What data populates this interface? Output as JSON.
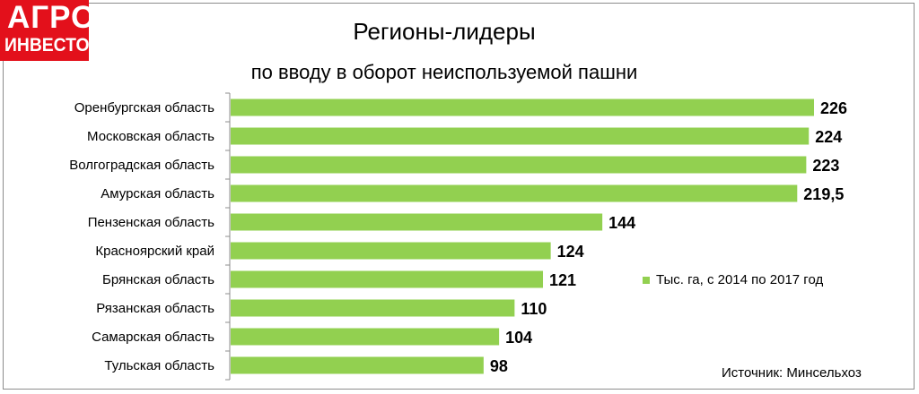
{
  "logo": {
    "line1": "АГРО",
    "line2": "ИНВЕСТОР"
  },
  "chart_data": {
    "type": "bar",
    "orientation": "horizontal",
    "title": "Регионы-лидеры",
    "subtitle": "по вводу в оборот неиспользуемой пашни",
    "categories": [
      "Оренбургская область",
      "Московская область",
      "Волгоградская область",
      "Амурская область",
      "Пензенская область",
      "Красноярский край",
      "Брянская область",
      "Рязанская область",
      "Самарская область",
      "Тульская область"
    ],
    "series": [
      {
        "name": "Тыс. га, с 2014 по 2017 год",
        "values": [
          226,
          224,
          223,
          219.5,
          144,
          124,
          121,
          110,
          104,
          98
        ],
        "labels": [
          "226",
          "224",
          "223",
          "219,5",
          "144",
          "124",
          "121",
          "110",
          "104",
          "98"
        ],
        "color": "#92d050"
      }
    ],
    "xlim": [
      0,
      226
    ],
    "grid": false,
    "legend_position": "right",
    "source": "Источник: Минсельхоз"
  }
}
